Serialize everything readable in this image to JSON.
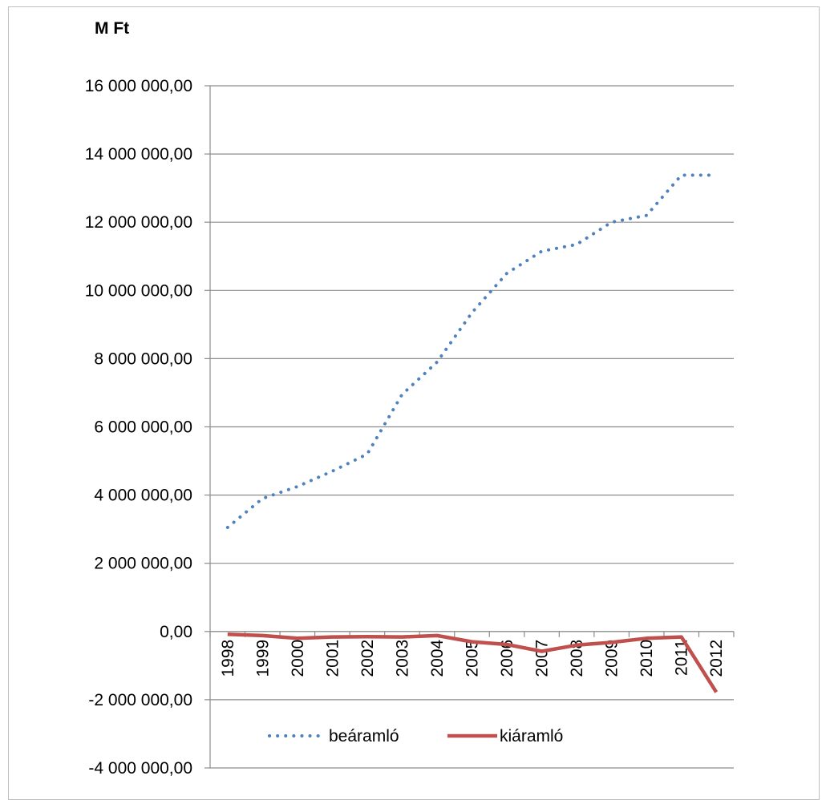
{
  "chart_data": {
    "type": "line",
    "title": "",
    "ylabel": "M Ft",
    "xlabel": "",
    "ylim": [
      -4000000,
      16000000
    ],
    "ytick_step": 2000000,
    "ytick_labels": [
      "-4 000 000,00",
      "-2 000 000,00",
      "0,00",
      "2 000 000,00",
      "4 000 000,00",
      "6 000 000,00",
      "8 000 000,00",
      "10 000 000,00",
      "12 000 000,00",
      "14 000 000,00",
      "16 000 000,00"
    ],
    "grid": true,
    "legend_position": "bottom",
    "categories": [
      "1998",
      "1999",
      "2000",
      "2001",
      "2002",
      "2003",
      "2004",
      "2005",
      "2006",
      "2007",
      "2008",
      "2009",
      "2010",
      "2011",
      "2012"
    ],
    "series": [
      {
        "name": "beáramló",
        "style": "dotted",
        "color": "#4F81BD",
        "values": [
          3050000,
          3900000,
          4250000,
          4700000,
          5200000,
          6950000,
          7900000,
          9350000,
          10500000,
          11150000,
          11350000,
          12000000,
          12200000,
          13380000,
          13380000
        ]
      },
      {
        "name": "kiáramló",
        "style": "solid",
        "color": "#C0504D",
        "values": [
          -80000,
          -120000,
          -200000,
          -160000,
          -150000,
          -160000,
          -120000,
          -300000,
          -380000,
          -580000,
          -400000,
          -320000,
          -200000,
          -160000,
          -1780000
        ]
      }
    ]
  }
}
